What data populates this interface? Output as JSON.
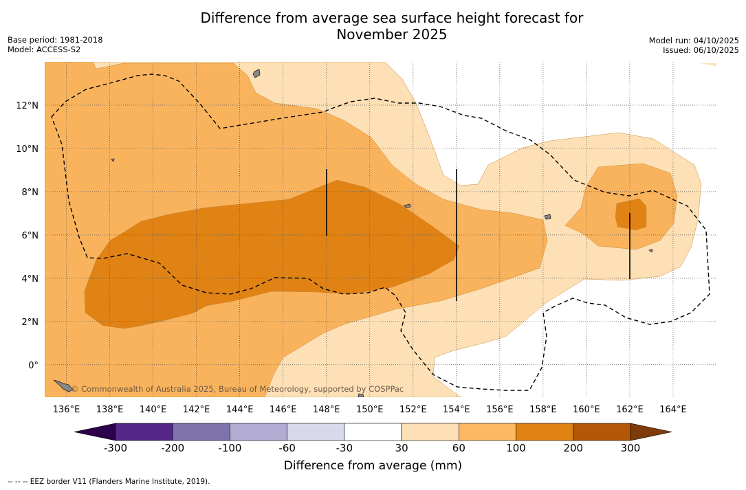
{
  "title_line1": "Difference from average sea surface height forecast for",
  "title_line2": "November 2025",
  "base_period": "Base period: 1981-2018",
  "model": "Model: ACCESS-S2",
  "model_run": "Model run: 04/10/2025",
  "issued": "Issued: 06/10/2025",
  "map": {
    "lon_range": [
      135,
      166
    ],
    "lat_range": [
      -1.5,
      14
    ],
    "lat_ticks": [
      "12°N",
      "10°N",
      "8°N",
      "6°N",
      "4°N",
      "2°N",
      "0°"
    ],
    "lon_ticks": [
      "136°E",
      "138°E",
      "140°E",
      "142°E",
      "144°E",
      "146°E",
      "148°E",
      "150°E",
      "152°E",
      "154°E",
      "156°E",
      "158°E",
      "160°E",
      "162°E",
      "164°E"
    ],
    "watermark": "© Commonwealth of Australia 2025, Bureau of Meteorology, supported by COSPPac",
    "colors": {
      "c30_60": "#fde0b6",
      "c60_100": "#f9b35d",
      "c100_200": "#e08214",
      "land": "#888888",
      "eez": "#000000"
    }
  },
  "colorbar": {
    "title": "Difference from average (mm)",
    "labels": [
      "-300",
      "-200",
      "-100",
      "-60",
      "-30",
      "30",
      "60",
      "100",
      "200",
      "300"
    ],
    "colors": [
      "#2d004b",
      "#542788",
      "#8073ac",
      "#b2abd2",
      "#d8daeb",
      "#ffffff",
      "#fee0b6",
      "#fdb863",
      "#e08214",
      "#b35806",
      "#7f3b08"
    ]
  },
  "footnote": "--  --  -- EEZ border V11 (Flanders Marine Institute, 2019)."
}
